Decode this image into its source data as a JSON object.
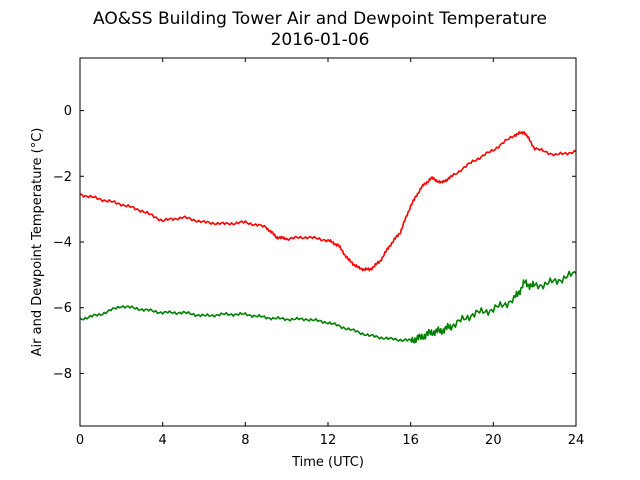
{
  "chart_data": {
    "type": "line",
    "title": "AO&SS Building Tower Air and Dewpoint Temperature",
    "subtitle": "2016-01-06",
    "xlabel": "Time (UTC)",
    "ylabel": "Air and Dewpoint Temperature (°C)",
    "xlim": [
      0,
      24
    ],
    "ylim": [
      -9.6,
      1.6
    ],
    "xticks": [
      0,
      4,
      8,
      12,
      16,
      20,
      24
    ],
    "yticks": [
      0,
      -2,
      -4,
      -6,
      -8
    ],
    "grid": false,
    "legend": "none",
    "series": [
      {
        "color": "#ff0000",
        "x": [
          0,
          1,
          2,
          3,
          4,
          5,
          6,
          7,
          8,
          9,
          9.5,
          10,
          11,
          12,
          12.5,
          13,
          13.5,
          14,
          14.5,
          15,
          15.5,
          16,
          16.5,
          17,
          17.5,
          18,
          19,
          20,
          21,
          21.5,
          22,
          23,
          24
        ],
        "y": [
          -2.55,
          -2.7,
          -2.85,
          -3.05,
          -3.35,
          -3.25,
          -3.4,
          -3.45,
          -3.4,
          -3.55,
          -3.85,
          -3.9,
          -3.85,
          -3.95,
          -4.1,
          -4.55,
          -4.8,
          -4.85,
          -4.6,
          -4.1,
          -3.7,
          -2.9,
          -2.35,
          -2.05,
          -2.2,
          -2.0,
          -1.55,
          -1.2,
          -0.75,
          -0.65,
          -1.15,
          -1.35,
          -1.25
        ]
      },
      {
        "color": "#008000",
        "x": [
          0,
          1,
          2,
          3,
          4,
          5,
          6,
          7,
          8,
          9,
          10,
          11,
          12,
          13,
          14,
          15,
          16,
          16.5,
          17,
          17.5,
          18,
          19,
          20,
          21,
          21.5,
          22,
          23,
          24
        ],
        "y": [
          -6.35,
          -6.2,
          -5.95,
          -6.05,
          -6.15,
          -6.15,
          -6.25,
          -6.2,
          -6.2,
          -6.3,
          -6.35,
          -6.35,
          -6.45,
          -6.65,
          -6.85,
          -6.95,
          -7.0,
          -6.9,
          -6.75,
          -6.7,
          -6.55,
          -6.2,
          -6.05,
          -5.75,
          -5.25,
          -5.35,
          -5.2,
          -4.95
        ]
      }
    ]
  }
}
